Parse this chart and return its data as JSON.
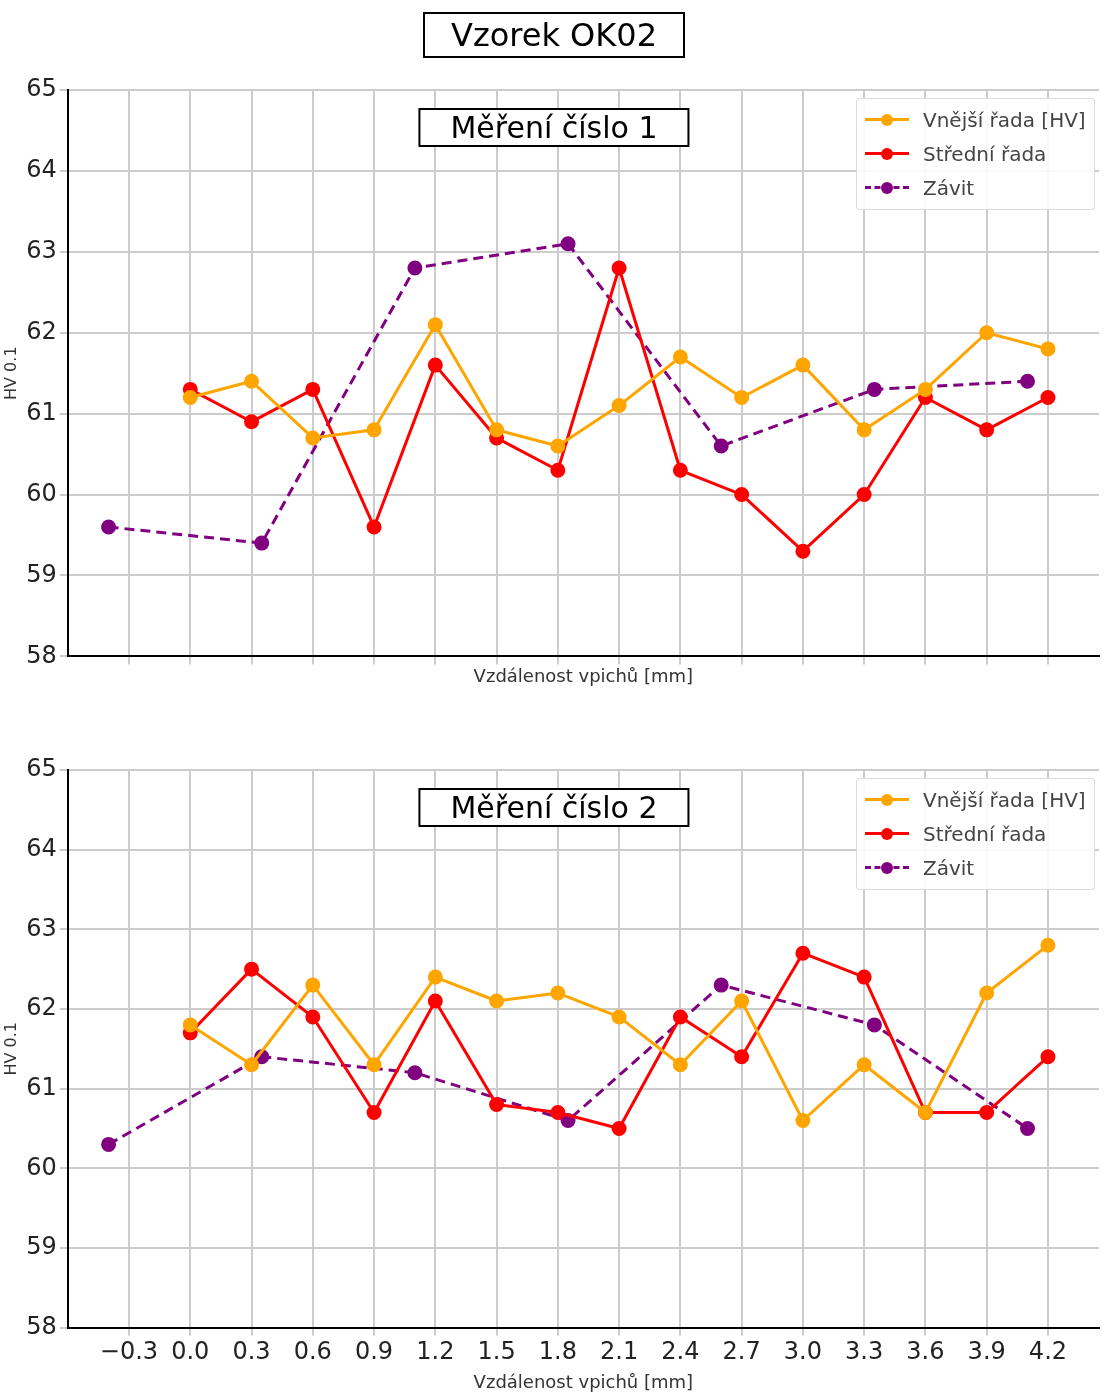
{
  "chart_data": [
    {
      "type": "line",
      "title": "Vzorek OK02",
      "subtitle": "Měření číslo 1",
      "xlabel": "Vzdálenost vpichů [mm]",
      "ylabel": "HV 0.1",
      "xlim": [
        -0.6,
        4.45
      ],
      "xticks": [
        -0.3,
        0,
        0.3,
        0.6,
        0.9,
        1.2,
        1.5,
        1.8,
        2.1,
        2.4,
        2.7,
        3,
        3.3,
        3.6,
        3.9,
        4.2
      ],
      "ylim": [
        58,
        65
      ],
      "yticks": [
        58,
        59,
        60,
        61,
        62,
        63,
        64,
        65
      ],
      "grid": true,
      "legend": "top right",
      "marker": "circle",
      "tick_labels": "y",
      "x": [
        0.0,
        0.3,
        0.6,
        0.9,
        1.2,
        1.5,
        1.8,
        2.1,
        2.4,
        2.7,
        3.0,
        3.3,
        3.6,
        3.9,
        4.2
      ],
      "series": [
        {
          "name": "Vnější řada [HV]",
          "color": "#ffa500",
          "values": [
            61.2,
            61.4,
            60.7,
            60.8,
            62.1,
            60.8,
            60.6,
            61.1,
            61.7,
            61.2,
            61.6,
            60.8,
            61.3,
            62.0,
            61.8
          ]
        },
        {
          "name": "Střední řada",
          "color": "#ff0000",
          "values": [
            61.3,
            60.9,
            61.3,
            59.6,
            61.6,
            60.7,
            60.3,
            62.8,
            60.3,
            60.0,
            59.3,
            60.0,
            61.2,
            60.8,
            61.2
          ]
        },
        {
          "name": "Závit",
          "color": "#800080",
          "line_style": "dashed",
          "x": [
            -0.4,
            0.35,
            1.1,
            1.85,
            2.6,
            3.35,
            4.1
          ],
          "values": [
            59.6,
            59.4,
            62.8,
            63.1,
            60.6,
            61.3,
            61.4
          ]
        }
      ]
    },
    {
      "type": "line",
      "title": "Měření číslo 2",
      "xlabel": "Vzdálenost vpichů [mm]",
      "ylabel": "HV 0.1",
      "xlim": [
        -0.6,
        4.45
      ],
      "xticks": [
        {
          "value": -0.3,
          "label": "−0.3"
        },
        {
          "value": 0,
          "label": "0.0"
        },
        0.3,
        0.6,
        0.9,
        1.2,
        1.5,
        1.8,
        2.1,
        2.4,
        2.7,
        {
          "value": 3,
          "label": "3.0"
        },
        3.3,
        3.6,
        3.9,
        4.2
      ],
      "ylim": [
        58,
        65
      ],
      "yticks": [
        58,
        59,
        60,
        61,
        62,
        63,
        64,
        65
      ],
      "grid": true,
      "legend": "top right",
      "marker": "circle",
      "x": [
        0.0,
        0.3,
        0.6,
        0.9,
        1.2,
        1.5,
        1.8,
        2.1,
        2.4,
        2.7,
        3.0,
        3.3,
        3.6,
        3.9,
        4.2
      ],
      "series": [
        {
          "name": "Vnější řada [HV]",
          "color": "#ffa500",
          "values": [
            61.8,
            61.3,
            62.3,
            61.3,
            62.4,
            62.1,
            62.2,
            61.9,
            61.3,
            62.1,
            60.6,
            61.3,
            60.7,
            62.2,
            62.8
          ]
        },
        {
          "name": "Střední řada",
          "color": "#ff0000",
          "values": [
            61.7,
            62.5,
            61.9,
            60.7,
            62.1,
            60.8,
            60.7,
            60.5,
            61.9,
            61.4,
            62.7,
            62.4,
            60.7,
            60.7,
            61.4
          ]
        },
        {
          "name": "Závit",
          "color": "#800080",
          "line_style": "dashed",
          "x": [
            -0.4,
            0.35,
            1.1,
            1.85,
            2.6,
            3.35,
            4.1
          ],
          "values": [
            60.3,
            61.4,
            61.2,
            60.6,
            62.3,
            61.8,
            60.5
          ]
        }
      ]
    }
  ]
}
